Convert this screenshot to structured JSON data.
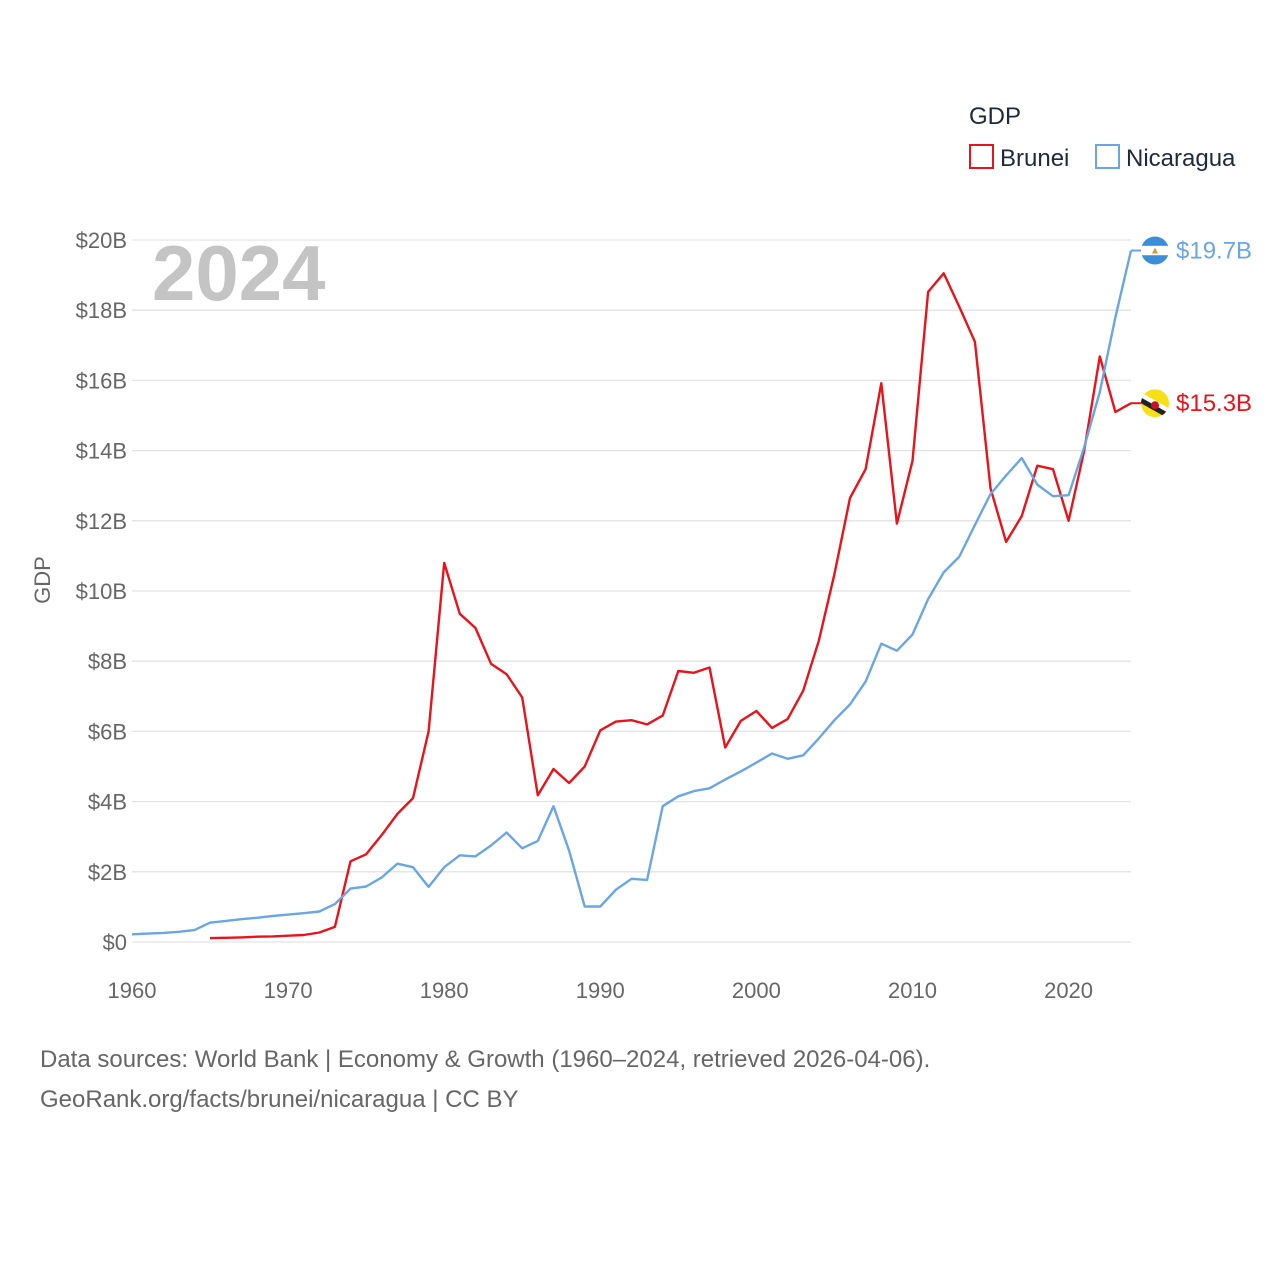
{
  "chart_data": {
    "type": "line",
    "year_label": "2024",
    "ylabel": "GDP",
    "xlabel": "",
    "legend": {
      "title": "GDP",
      "placement": "top-right"
    },
    "xlim": [
      1960,
      2024
    ],
    "ylim": [
      0,
      20
    ],
    "y_unit": "billion USD",
    "x_ticks": [
      1960,
      1970,
      1980,
      1990,
      2000,
      2010,
      2020
    ],
    "y_ticks": [
      {
        "value": 0,
        "label": "$0"
      },
      {
        "value": 2,
        "label": "$2B"
      },
      {
        "value": 4,
        "label": "$4B"
      },
      {
        "value": 6,
        "label": "$6B"
      },
      {
        "value": 8,
        "label": "$8B"
      },
      {
        "value": 10,
        "label": "$10B"
      },
      {
        "value": 12,
        "label": "$12B"
      },
      {
        "value": 14,
        "label": "$14B"
      },
      {
        "value": 16,
        "label": "$16B"
      },
      {
        "value": 18,
        "label": "$18B"
      },
      {
        "value": 20,
        "label": "$20B"
      }
    ],
    "grid": true,
    "series": [
      {
        "name": "Brunei",
        "color": "#e8131b",
        "end_label": "$15.3B",
        "flag": "brunei-flag",
        "x": [
          1965,
          1966,
          1967,
          1968,
          1969,
          1970,
          1971,
          1972,
          1973,
          1974,
          1975,
          1976,
          1977,
          1978,
          1979,
          1980,
          1981,
          1982,
          1983,
          1984,
          1985,
          1986,
          1987,
          1988,
          1989,
          1990,
          1991,
          1992,
          1993,
          1994,
          1995,
          1996,
          1997,
          1998,
          1999,
          2000,
          2001,
          2002,
          2003,
          2004,
          2005,
          2006,
          2007,
          2008,
          2009,
          2010,
          2011,
          2012,
          2013,
          2014,
          2015,
          2016,
          2017,
          2018,
          2019,
          2020,
          2021,
          2022,
          2023,
          2024
        ],
        "values": [
          0.11,
          0.12,
          0.13,
          0.15,
          0.16,
          0.18,
          0.2,
          0.27,
          0.43,
          2.3,
          2.5,
          3.05,
          3.65,
          4.1,
          6.0,
          10.8,
          9.35,
          8.95,
          7.93,
          7.63,
          6.97,
          4.18,
          4.93,
          4.53,
          5.0,
          6.03,
          6.28,
          6.32,
          6.2,
          6.45,
          7.72,
          7.67,
          7.82,
          5.54,
          6.3,
          6.58,
          6.1,
          6.35,
          7.16,
          8.58,
          10.48,
          12.65,
          13.47,
          15.92,
          11.92,
          13.71,
          18.52,
          19.05,
          18.1,
          17.1,
          12.93,
          11.4,
          12.13,
          13.57,
          13.47,
          12.0,
          14.0,
          16.68,
          15.1,
          15.35
        ]
      },
      {
        "name": "Nicaragua",
        "color": "#6aa6e2",
        "end_label": "$19.7B",
        "flag": "nicaragua-flag",
        "x": [
          1960,
          1961,
          1962,
          1963,
          1964,
          1965,
          1966,
          1967,
          1968,
          1969,
          1970,
          1971,
          1972,
          1973,
          1974,
          1975,
          1976,
          1977,
          1978,
          1979,
          1980,
          1981,
          1982,
          1983,
          1984,
          1985,
          1986,
          1987,
          1988,
          1989,
          1990,
          1991,
          1992,
          1993,
          1994,
          1995,
          1996,
          1997,
          1998,
          1999,
          2000,
          2001,
          2002,
          2003,
          2004,
          2005,
          2006,
          2007,
          2008,
          2009,
          2010,
          2011,
          2012,
          2013,
          2014,
          2015,
          2016,
          2017,
          2018,
          2019,
          2020,
          2021,
          2022,
          2023,
          2024
        ],
        "values": [
          0.22,
          0.24,
          0.26,
          0.29,
          0.34,
          0.55,
          0.6,
          0.65,
          0.69,
          0.74,
          0.78,
          0.82,
          0.87,
          1.08,
          1.52,
          1.58,
          1.84,
          2.23,
          2.13,
          1.57,
          2.13,
          2.47,
          2.44,
          2.75,
          3.12,
          2.67,
          2.88,
          3.87,
          2.6,
          1.01,
          1.01,
          1.49,
          1.8,
          1.77,
          3.87,
          4.15,
          4.3,
          4.38,
          4.63,
          4.86,
          5.11,
          5.37,
          5.22,
          5.32,
          5.8,
          6.32,
          6.77,
          7.42,
          8.5,
          8.3,
          8.76,
          9.77,
          10.53,
          10.98,
          11.88,
          12.76,
          13.29,
          13.79,
          13.03,
          12.7,
          12.73,
          14.1,
          15.67,
          17.8,
          19.7
        ]
      }
    ]
  },
  "footer": {
    "line1": "Data sources: World Bank | Economy & Growth (1960–2024, retrieved 2026-04-06).",
    "line2": "GeoRank.org/facts/brunei/nicaragua | CC BY"
  }
}
